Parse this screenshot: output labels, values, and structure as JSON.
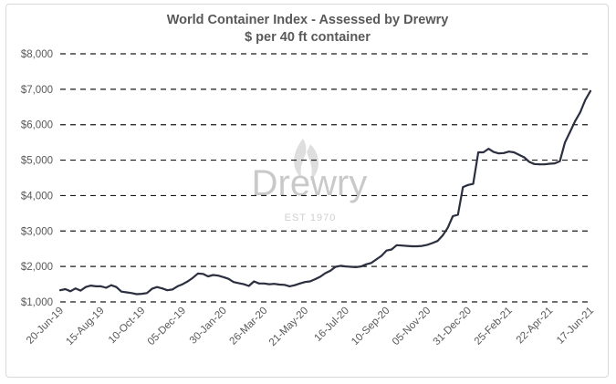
{
  "chart_data": {
    "type": "line",
    "title": "World Container Index - Assessed by Drewry",
    "subtitle": "$ per 40 ft container",
    "xlabel": "",
    "ylabel": "",
    "ylim": [
      1000,
      8000
    ],
    "y_ticks": [
      1000,
      2000,
      3000,
      4000,
      5000,
      6000,
      7000,
      8000
    ],
    "y_tick_labels": [
      "$1,000",
      "$2,000",
      "$3,000",
      "$4,000",
      "$5,000",
      "$6,000",
      "$7,000",
      "$8,000"
    ],
    "x_tick_labels": [
      "20-Jun-19",
      "15-Aug-19",
      "10-Oct-19",
      "05-Dec-19",
      "30-Jan-20",
      "26-Mar-20",
      "21-May-20",
      "16-Jul-20",
      "10-Sep-20",
      "05-Nov-20",
      "31-Dec-20",
      "25-Feb-21",
      "22-Apr-21",
      "17-Jun-21"
    ],
    "grid": true,
    "legend": "none",
    "series_color": "#2b2f3f",
    "watermark": {
      "brand": "Drewry",
      "tagline": "EST 1970"
    },
    "series": [
      {
        "x": [
          "2019-06-20",
          "2019-06-27",
          "2019-07-04",
          "2019-07-11",
          "2019-07-18",
          "2019-07-25",
          "2019-08-01",
          "2019-08-08",
          "2019-08-15",
          "2019-08-22",
          "2019-08-29",
          "2019-09-05",
          "2019-09-12",
          "2019-09-19",
          "2019-09-26",
          "2019-10-03",
          "2019-10-10",
          "2019-10-17",
          "2019-10-24",
          "2019-10-31",
          "2019-11-07",
          "2019-11-14",
          "2019-11-21",
          "2019-11-28",
          "2019-12-05",
          "2019-12-12",
          "2019-12-19",
          "2019-12-26",
          "2020-01-02",
          "2020-01-09",
          "2020-01-16",
          "2020-01-23",
          "2020-01-30",
          "2020-02-06",
          "2020-02-13",
          "2020-02-20",
          "2020-02-27",
          "2020-03-05",
          "2020-03-12",
          "2020-03-19",
          "2020-03-26",
          "2020-04-02",
          "2020-04-09",
          "2020-04-16",
          "2020-04-23",
          "2020-04-30",
          "2020-05-07",
          "2020-05-14",
          "2020-05-21",
          "2020-05-28",
          "2020-06-04",
          "2020-06-11",
          "2020-06-18",
          "2020-06-25",
          "2020-07-02",
          "2020-07-09",
          "2020-07-16",
          "2020-07-23",
          "2020-07-30",
          "2020-08-06",
          "2020-08-13",
          "2020-08-20",
          "2020-08-27",
          "2020-09-03",
          "2020-09-10",
          "2020-09-17",
          "2020-09-24",
          "2020-10-01",
          "2020-10-08",
          "2020-10-15",
          "2020-10-22",
          "2020-10-29",
          "2020-11-05",
          "2020-11-12",
          "2020-11-19",
          "2020-11-26",
          "2020-12-03",
          "2020-12-10",
          "2020-12-17",
          "2020-12-24",
          "2020-12-31",
          "2021-01-07",
          "2021-01-14",
          "2021-01-21",
          "2021-01-28",
          "2021-02-04",
          "2021-02-11",
          "2021-02-18",
          "2021-02-25",
          "2021-03-04",
          "2021-03-11",
          "2021-03-18",
          "2021-03-25",
          "2021-04-01",
          "2021-04-08",
          "2021-04-15",
          "2021-04-22",
          "2021-04-29",
          "2021-05-06",
          "2021-05-13",
          "2021-05-20",
          "2021-05-27",
          "2021-06-03",
          "2021-06-10",
          "2021-06-17"
        ],
        "values": [
          1330,
          1360,
          1300,
          1380,
          1320,
          1420,
          1460,
          1440,
          1440,
          1400,
          1470,
          1420,
          1290,
          1270,
          1250,
          1220,
          1230,
          1250,
          1370,
          1420,
          1380,
          1330,
          1350,
          1440,
          1500,
          1580,
          1680,
          1800,
          1790,
          1720,
          1760,
          1740,
          1700,
          1650,
          1560,
          1530,
          1500,
          1450,
          1580,
          1520,
          1520,
          1500,
          1510,
          1490,
          1480,
          1440,
          1470,
          1520,
          1560,
          1580,
          1640,
          1710,
          1810,
          1880,
          1990,
          2020,
          2000,
          1990,
          1980,
          2000,
          2060,
          2100,
          2200,
          2300,
          2450,
          2480,
          2600,
          2590,
          2580,
          2570,
          2570,
          2580,
          2610,
          2660,
          2720,
          2870,
          3090,
          3420,
          3460,
          4240,
          4300,
          4330,
          5220,
          5220,
          5320,
          5230,
          5190,
          5200,
          5240,
          5220,
          5150,
          5080,
          4950,
          4890,
          4880,
          4880,
          4900,
          4910,
          4970,
          5500,
          5800,
          6100,
          6350,
          6700,
          6950
        ]
      }
    ]
  }
}
